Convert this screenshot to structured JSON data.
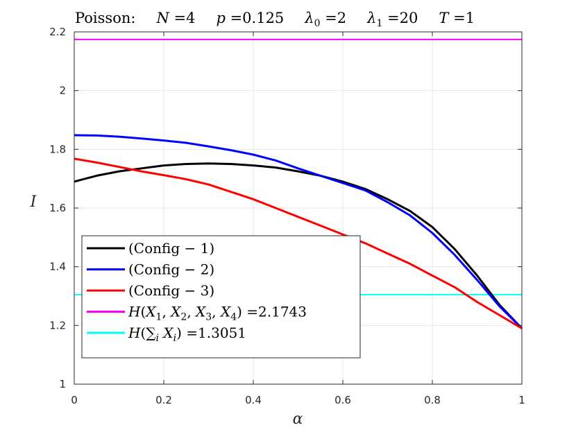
{
  "chart_data": {
    "type": "line",
    "title": {
      "prefix": "Poisson:",
      "params": [
        {
          "sym": "N",
          "sub": "",
          "val": "4"
        },
        {
          "sym": "p",
          "sub": "",
          "val": "0.125"
        },
        {
          "sym": "λ",
          "sub": "0",
          "val": "2"
        },
        {
          "sym": "λ",
          "sub": "1",
          "val": "20"
        },
        {
          "sym": "T",
          "sub": "",
          "val": "1"
        }
      ]
    },
    "xlabel": "α",
    "ylabel": "I",
    "xlim": [
      0,
      1
    ],
    "ylim": [
      1,
      2.2
    ],
    "xticks": [
      "0",
      "0.2",
      "0.4",
      "0.6",
      "0.8",
      "1"
    ],
    "yticks": [
      "1",
      "1.2",
      "1.4",
      "1.6",
      "1.8",
      "2",
      "2.2"
    ],
    "grid": true,
    "legend_position": "lower-left",
    "series": [
      {
        "name": "(Config − 1)",
        "color": "#000000",
        "x": [
          0,
          0.05,
          0.1,
          0.15,
          0.2,
          0.25,
          0.3,
          0.35,
          0.4,
          0.45,
          0.5,
          0.55,
          0.6,
          0.65,
          0.7,
          0.75,
          0.8,
          0.85,
          0.9,
          0.95,
          1
        ],
        "y": [
          1.69,
          1.71,
          1.725,
          1.735,
          1.745,
          1.75,
          1.752,
          1.75,
          1.745,
          1.738,
          1.725,
          1.71,
          1.69,
          1.665,
          1.63,
          1.59,
          1.535,
          1.46,
          1.37,
          1.27,
          1.19
        ]
      },
      {
        "name": "(Config − 2)",
        "color": "#0000ff",
        "x": [
          0,
          0.05,
          0.1,
          0.15,
          0.2,
          0.25,
          0.3,
          0.35,
          0.4,
          0.45,
          0.5,
          0.55,
          0.6,
          0.65,
          0.7,
          0.75,
          0.8,
          0.85,
          0.9,
          0.95,
          1
        ],
        "y": [
          1.848,
          1.847,
          1.843,
          1.837,
          1.83,
          1.822,
          1.81,
          1.797,
          1.782,
          1.762,
          1.735,
          1.71,
          1.685,
          1.66,
          1.62,
          1.575,
          1.515,
          1.44,
          1.355,
          1.265,
          1.19
        ]
      },
      {
        "name": "(Config − 3)",
        "color": "#ff0000",
        "x": [
          0,
          0.05,
          0.1,
          0.15,
          0.2,
          0.25,
          0.3,
          0.35,
          0.4,
          0.45,
          0.5,
          0.55,
          0.6,
          0.65,
          0.7,
          0.75,
          0.8,
          0.85,
          0.9,
          0.95,
          1
        ],
        "y": [
          1.768,
          1.755,
          1.74,
          1.725,
          1.712,
          1.698,
          1.68,
          1.655,
          1.63,
          1.6,
          1.57,
          1.54,
          1.51,
          1.48,
          1.445,
          1.41,
          1.37,
          1.33,
          1.28,
          1.235,
          1.19
        ]
      }
    ],
    "hlines": [
      {
        "name": "H(X1, X2, X3, X4) =2.1743",
        "y": 2.1743,
        "color": "#ff00ff"
      },
      {
        "name": "H(∑i Xi) =1.3051",
        "y": 1.3051,
        "color": "#00ffff"
      }
    ],
    "legend": [
      {
        "color": "#000000",
        "parts": [
          {
            "t": "(Config − 1)"
          }
        ]
      },
      {
        "color": "#0000ff",
        "parts": [
          {
            "t": "(Config − 2)"
          }
        ]
      },
      {
        "color": "#ff0000",
        "parts": [
          {
            "t": "(Config − 3)"
          }
        ]
      },
      {
        "color": "#ff00ff",
        "parts": [
          {
            "t": "H",
            "i": true
          },
          {
            "t": "("
          },
          {
            "t": "X",
            "i": true
          },
          {
            "t": "1",
            "sub": true
          },
          {
            "t": ", "
          },
          {
            "t": "X",
            "i": true
          },
          {
            "t": "2",
            "sub": true
          },
          {
            "t": ", "
          },
          {
            "t": "X",
            "i": true
          },
          {
            "t": "3",
            "sub": true
          },
          {
            "t": ", "
          },
          {
            "t": "X",
            "i": true
          },
          {
            "t": "4",
            "sub": true
          },
          {
            "t": ") =2.1743"
          }
        ]
      },
      {
        "color": "#00ffff",
        "parts": [
          {
            "t": "H",
            "i": true
          },
          {
            "t": "("
          },
          {
            "t": "∑"
          },
          {
            "t": "i",
            "sub": true,
            "i": true
          },
          {
            "t": " "
          },
          {
            "t": "X",
            "i": true
          },
          {
            "t": "i",
            "sub": true,
            "i": true
          },
          {
            "t": ") =1.3051"
          }
        ]
      }
    ]
  }
}
